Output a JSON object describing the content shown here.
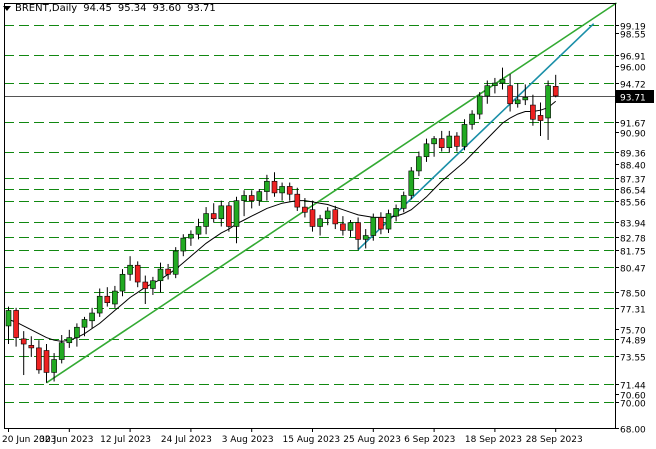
{
  "header": {
    "symbol": "BRENT,Daily",
    "open": "94.45",
    "high": "95.34",
    "low": "93.60",
    "close": "93.71"
  },
  "chart_data": {
    "type": "candlestick",
    "title": "BRENT,Daily",
    "ylim": [
      68.0,
      100.9
    ],
    "colors": {
      "up": "#22aa22",
      "down": "#ee2222",
      "wick": "#000000",
      "support": "#118811",
      "trend": "#33aa33",
      "channel": "#1a8fa8",
      "ma": "#000000",
      "current": "#000000"
    },
    "y_tick_labels": [
      "98.55",
      "96.00",
      "90.90",
      "88.40",
      "75.70",
      "70.60",
      "68.00"
    ],
    "horizontal_levels": [
      "99.19",
      "96.91",
      "94.72",
      "91.67",
      "89.36",
      "87.37",
      "86.54",
      "85.56",
      "83.94",
      "82.78",
      "81.75",
      "80.47",
      "78.50",
      "77.31",
      "74.89",
      "73.55",
      "71.44",
      "70.00"
    ],
    "current_price": "93.71",
    "x_tick_labels": [
      "20 Jun 2023",
      "30 Jun 2023",
      "12 Jul 2023",
      "24 Jul 2023",
      "3 Aug 2023",
      "15 Aug 2023",
      "25 Aug 2023",
      "6 Sep 2023",
      "18 Sep 2023",
      "28 Sep 2023"
    ],
    "x_tick_bar_index": [
      0,
      8,
      16,
      24,
      32,
      40,
      48,
      56,
      64,
      72
    ],
    "candles": [
      {
        "o": 75.9,
        "h": 77.4,
        "l": 74.5,
        "c": 77.1
      },
      {
        "o": 77.1,
        "h": 77.3,
        "l": 74.3,
        "c": 75.0
      },
      {
        "o": 74.9,
        "h": 75.5,
        "l": 72.1,
        "c": 74.5
      },
      {
        "o": 74.4,
        "h": 75.1,
        "l": 73.5,
        "c": 74.2
      },
      {
        "o": 74.2,
        "h": 74.8,
        "l": 72.2,
        "c": 72.5
      },
      {
        "o": 74.0,
        "h": 74.5,
        "l": 71.5,
        "c": 72.3
      },
      {
        "o": 72.3,
        "h": 73.8,
        "l": 71.6,
        "c": 73.3
      },
      {
        "o": 73.3,
        "h": 75.2,
        "l": 73.0,
        "c": 74.6
      },
      {
        "o": 74.6,
        "h": 75.6,
        "l": 74.2,
        "c": 75.0
      },
      {
        "o": 75.0,
        "h": 76.1,
        "l": 74.3,
        "c": 75.8
      },
      {
        "o": 75.8,
        "h": 76.6,
        "l": 75.1,
        "c": 76.4
      },
      {
        "o": 76.3,
        "h": 77.3,
        "l": 75.7,
        "c": 76.9
      },
      {
        "o": 76.9,
        "h": 78.8,
        "l": 76.6,
        "c": 78.2
      },
      {
        "o": 78.2,
        "h": 78.9,
        "l": 77.4,
        "c": 77.7
      },
      {
        "o": 77.6,
        "h": 79.0,
        "l": 77.3,
        "c": 78.6
      },
      {
        "o": 78.6,
        "h": 80.3,
        "l": 78.2,
        "c": 79.9
      },
      {
        "o": 79.9,
        "h": 81.3,
        "l": 79.4,
        "c": 80.6
      },
      {
        "o": 80.6,
        "h": 80.9,
        "l": 78.9,
        "c": 79.3
      },
      {
        "o": 79.3,
        "h": 79.8,
        "l": 77.6,
        "c": 78.8
      },
      {
        "o": 78.8,
        "h": 79.7,
        "l": 78.3,
        "c": 79.4
      },
      {
        "o": 79.4,
        "h": 80.8,
        "l": 78.5,
        "c": 80.3
      },
      {
        "o": 80.3,
        "h": 80.7,
        "l": 79.5,
        "c": 79.9
      },
      {
        "o": 79.9,
        "h": 82.0,
        "l": 79.6,
        "c": 81.7
      },
      {
        "o": 81.7,
        "h": 83.0,
        "l": 81.3,
        "c": 82.7
      },
      {
        "o": 82.7,
        "h": 83.3,
        "l": 82.1,
        "c": 83.0
      },
      {
        "o": 83.0,
        "h": 84.2,
        "l": 82.6,
        "c": 83.6
      },
      {
        "o": 83.6,
        "h": 85.1,
        "l": 83.0,
        "c": 84.6
      },
      {
        "o": 84.6,
        "h": 85.4,
        "l": 83.9,
        "c": 84.2
      },
      {
        "o": 84.2,
        "h": 85.6,
        "l": 83.6,
        "c": 85.2
      },
      {
        "o": 85.2,
        "h": 85.5,
        "l": 83.2,
        "c": 83.6
      },
      {
        "o": 83.6,
        "h": 85.9,
        "l": 82.3,
        "c": 85.6
      },
      {
        "o": 85.6,
        "h": 86.4,
        "l": 84.4,
        "c": 86.0
      },
      {
        "o": 86.0,
        "h": 86.4,
        "l": 85.0,
        "c": 85.6
      },
      {
        "o": 85.6,
        "h": 86.5,
        "l": 85.2,
        "c": 86.3
      },
      {
        "o": 86.3,
        "h": 87.6,
        "l": 85.6,
        "c": 87.1
      },
      {
        "o": 87.1,
        "h": 87.8,
        "l": 85.9,
        "c": 86.2
      },
      {
        "o": 86.2,
        "h": 87.0,
        "l": 85.6,
        "c": 86.7
      },
      {
        "o": 86.7,
        "h": 87.0,
        "l": 85.6,
        "c": 86.1
      },
      {
        "o": 86.1,
        "h": 86.6,
        "l": 84.8,
        "c": 85.1
      },
      {
        "o": 85.1,
        "h": 85.8,
        "l": 84.3,
        "c": 84.7
      },
      {
        "o": 84.9,
        "h": 85.6,
        "l": 83.2,
        "c": 83.6
      },
      {
        "o": 83.6,
        "h": 84.5,
        "l": 82.9,
        "c": 84.2
      },
      {
        "o": 84.2,
        "h": 85.1,
        "l": 83.7,
        "c": 84.8
      },
      {
        "o": 84.9,
        "h": 85.2,
        "l": 83.4,
        "c": 83.8
      },
      {
        "o": 83.8,
        "h": 84.4,
        "l": 82.9,
        "c": 83.3
      },
      {
        "o": 83.3,
        "h": 84.1,
        "l": 82.8,
        "c": 83.9
      },
      {
        "o": 83.9,
        "h": 84.3,
        "l": 81.8,
        "c": 82.6
      },
      {
        "o": 82.6,
        "h": 83.4,
        "l": 81.9,
        "c": 82.9
      },
      {
        "o": 82.9,
        "h": 84.6,
        "l": 82.5,
        "c": 84.3
      },
      {
        "o": 84.3,
        "h": 84.7,
        "l": 83.0,
        "c": 83.4
      },
      {
        "o": 83.4,
        "h": 84.9,
        "l": 83.1,
        "c": 84.6
      },
      {
        "o": 84.4,
        "h": 85.3,
        "l": 84.0,
        "c": 85.0
      },
      {
        "o": 85.0,
        "h": 86.3,
        "l": 84.7,
        "c": 86.0
      },
      {
        "o": 86.0,
        "h": 88.2,
        "l": 85.7,
        "c": 87.9
      },
      {
        "o": 87.9,
        "h": 89.4,
        "l": 87.5,
        "c": 89.0
      },
      {
        "o": 89.0,
        "h": 90.4,
        "l": 88.6,
        "c": 90.0
      },
      {
        "o": 90.0,
        "h": 90.6,
        "l": 89.0,
        "c": 90.4
      },
      {
        "o": 90.4,
        "h": 91.0,
        "l": 89.4,
        "c": 89.7
      },
      {
        "o": 89.7,
        "h": 91.0,
        "l": 89.3,
        "c": 90.6
      },
      {
        "o": 90.6,
        "h": 90.9,
        "l": 89.4,
        "c": 89.8
      },
      {
        "o": 89.8,
        "h": 91.9,
        "l": 89.5,
        "c": 91.5
      },
      {
        "o": 91.5,
        "h": 92.6,
        "l": 91.1,
        "c": 92.3
      },
      {
        "o": 92.3,
        "h": 94.0,
        "l": 91.9,
        "c": 93.7
      },
      {
        "o": 93.7,
        "h": 94.9,
        "l": 93.1,
        "c": 94.5
      },
      {
        "o": 94.5,
        "h": 95.1,
        "l": 93.9,
        "c": 94.7
      },
      {
        "o": 94.7,
        "h": 95.9,
        "l": 94.2,
        "c": 95.0
      },
      {
        "o": 94.5,
        "h": 95.4,
        "l": 92.5,
        "c": 93.1
      },
      {
        "o": 93.1,
        "h": 94.7,
        "l": 92.8,
        "c": 93.4
      },
      {
        "o": 93.4,
        "h": 94.6,
        "l": 93.0,
        "c": 93.6
      },
      {
        "o": 93.0,
        "h": 93.8,
        "l": 91.4,
        "c": 91.9
      },
      {
        "o": 92.2,
        "h": 93.2,
        "l": 90.6,
        "c": 91.8
      },
      {
        "o": 92.0,
        "h": 94.9,
        "l": 90.3,
        "c": 94.5
      },
      {
        "o": 94.45,
        "h": 95.34,
        "l": 93.6,
        "c": 93.71
      }
    ],
    "ma_values": [
      76.4,
      76.2,
      75.9,
      75.6,
      75.3,
      75.0,
      74.8,
      74.7,
      74.8,
      75.0,
      75.3,
      75.7,
      76.1,
      76.6,
      77.1,
      77.6,
      78.1,
      78.5,
      78.9,
      79.2,
      79.5,
      79.9,
      80.3,
      80.8,
      81.3,
      81.8,
      82.3,
      82.7,
      83.1,
      83.4,
      83.8,
      84.1,
      84.4,
      84.7,
      85.0,
      85.2,
      85.4,
      85.5,
      85.6,
      85.6,
      85.5,
      85.4,
      85.3,
      85.1,
      84.9,
      84.7,
      84.5,
      84.4,
      84.3,
      84.3,
      84.3,
      84.4,
      84.6,
      84.9,
      85.4,
      85.9,
      86.5,
      87.1,
      87.6,
      88.1,
      88.6,
      89.2,
      89.8,
      90.4,
      91.0,
      91.6,
      92.0,
      92.3,
      92.5,
      92.5,
      92.6,
      92.8,
      93.3
    ],
    "trendlines": [
      {
        "name": "support",
        "from": [
          5,
          71.5
        ],
        "to": [
          80,
          100.9
        ]
      },
      {
        "name": "channel",
        "from": [
          46,
          81.8
        ],
        "to": [
          77,
          99.3
        ]
      }
    ]
  }
}
